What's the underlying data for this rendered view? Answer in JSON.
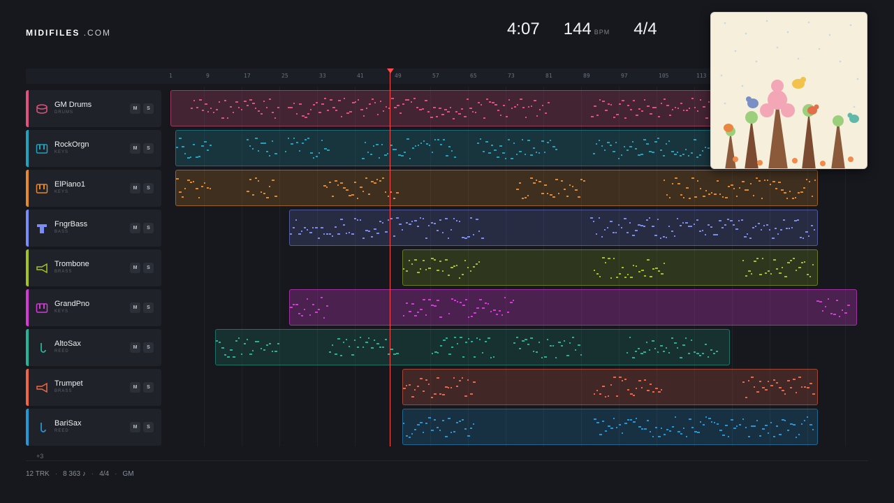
{
  "brand": {
    "name": "MIDIFILES",
    "suffix": ".COM"
  },
  "stats": {
    "duration": "4:07",
    "tempo": "144",
    "tempo_unit": "BPM",
    "time_signature": "4/4"
  },
  "ruler": {
    "ticks": [
      "1",
      "9",
      "17",
      "25",
      "33",
      "41",
      "49",
      "57",
      "65",
      "73",
      "81",
      "89",
      "97",
      "105",
      "113"
    ]
  },
  "tracks": [
    {
      "name": "GM Drums",
      "category": "DRUMS",
      "color": "#e0527e",
      "icon": "drum-icon",
      "mute": "M",
      "solo": "S"
    },
    {
      "name": "RockOrgn",
      "category": "KEYS",
      "color": "#21a3bd",
      "icon": "keyboard-icon",
      "mute": "M",
      "solo": "S"
    },
    {
      "name": "ElPiano1",
      "category": "KEYS",
      "color": "#e58a2a",
      "icon": "keyboard-icon",
      "mute": "M",
      "solo": "S"
    },
    {
      "name": "FngrBass",
      "category": "BASS",
      "color": "#7a8cf5",
      "icon": "bass-icon",
      "mute": "M",
      "solo": "S"
    },
    {
      "name": "Trombone",
      "category": "BRASS",
      "color": "#a3c226",
      "icon": "horn-icon",
      "mute": "M",
      "solo": "S"
    },
    {
      "name": "GrandPno",
      "category": "KEYS",
      "color": "#d63ad6",
      "icon": "keyboard-icon",
      "mute": "M",
      "solo": "S"
    },
    {
      "name": "AltoSax",
      "category": "REED",
      "color": "#22b59a",
      "icon": "sax-icon",
      "mute": "M",
      "solo": "S"
    },
    {
      "name": "Trumpet",
      "category": "BRASS",
      "color": "#ef6646",
      "icon": "horn-icon",
      "mute": "M",
      "solo": "S"
    },
    {
      "name": "BariSax",
      "category": "REED",
      "color": "#2497d6",
      "icon": "sax-icon",
      "mute": "M",
      "solo": "S"
    }
  ],
  "more_tracks": "+3",
  "footer": {
    "tracks": "12 TRK",
    "notes": "8 363 ♪",
    "meter": "4/4",
    "standard": "GM",
    "separator": "·"
  },
  "playhead": {
    "bar": 46
  }
}
